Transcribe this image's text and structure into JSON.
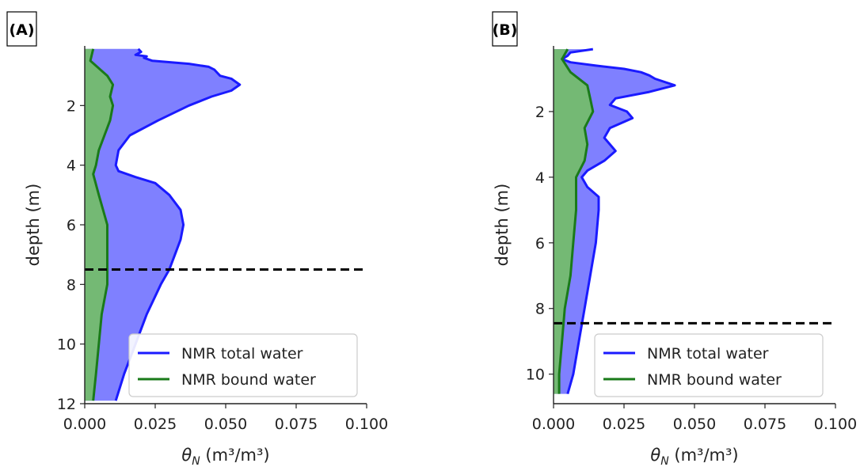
{
  "chart_data": [
    {
      "type": "area",
      "panel_label": "(A)",
      "xlabel_symbol": "θ",
      "xlabel_subscript": "N",
      "xlabel_units": " (m³/m³)",
      "ylabel": "depth (m)",
      "xlim": [
        0.0,
        0.1
      ],
      "ylim": [
        12,
        0
      ],
      "x_ticks": [
        "0.000",
        "0.025",
        "0.050",
        "0.075",
        "0.100"
      ],
      "y_ticks": [
        "2",
        "4",
        "6",
        "8",
        "10",
        "12"
      ],
      "water_table_depth": 7.5,
      "legend": [
        "NMR total water",
        "NMR bound water"
      ],
      "legend_position": "lower-right",
      "colors": {
        "total": "#1a1aff",
        "bound": "#1a7a1a",
        "total_fill": "#7f80ff",
        "bound_fill": "#74b974",
        "water_table": "#000000"
      },
      "series": [
        {
          "name": "NMR total water",
          "depth": [
            0.1,
            0.2,
            0.3,
            0.35,
            0.4,
            0.5,
            0.6,
            0.7,
            0.8,
            0.9,
            1.0,
            1.1,
            1.3,
            1.5,
            1.7,
            2.0,
            2.5,
            3.0,
            3.5,
            4.0,
            4.2,
            4.4,
            4.6,
            5.0,
            5.5,
            6.0,
            6.5,
            7.0,
            7.5,
            8.0,
            9.0,
            10.0,
            11.0,
            11.9
          ],
          "values": [
            0.019,
            0.02,
            0.018,
            0.022,
            0.021,
            0.024,
            0.037,
            0.044,
            0.046,
            0.047,
            0.048,
            0.052,
            0.055,
            0.052,
            0.045,
            0.037,
            0.026,
            0.016,
            0.012,
            0.011,
            0.012,
            0.018,
            0.025,
            0.03,
            0.034,
            0.035,
            0.034,
            0.032,
            0.03,
            0.027,
            0.022,
            0.018,
            0.014,
            0.011
          ]
        },
        {
          "name": "NMR bound water",
          "depth": [
            0.1,
            0.5,
            1.0,
            1.3,
            1.7,
            2.0,
            2.5,
            3.0,
            3.5,
            4.0,
            4.3,
            5.0,
            6.0,
            7.0,
            8.0,
            9.0,
            10.0,
            11.0,
            11.9
          ],
          "values": [
            0.003,
            0.002,
            0.008,
            0.01,
            0.009,
            0.01,
            0.009,
            0.007,
            0.005,
            0.004,
            0.003,
            0.005,
            0.008,
            0.008,
            0.008,
            0.006,
            0.005,
            0.004,
            0.003
          ]
        }
      ]
    },
    {
      "type": "area",
      "panel_label": "(B)",
      "xlabel_symbol": "θ",
      "xlabel_subscript": "N",
      "xlabel_units": " (m³/m³)",
      "ylabel": "depth (m)",
      "xlim": [
        0.0,
        0.1
      ],
      "ylim": [
        10.9,
        0
      ],
      "x_ticks": [
        "0.000",
        "0.025",
        "0.050",
        "0.075",
        "0.100"
      ],
      "y_ticks": [
        "2",
        "4",
        "6",
        "8",
        "10"
      ],
      "water_table_depth": 8.45,
      "legend": [
        "NMR total water",
        "NMR bound water"
      ],
      "legend_position": "lower-right",
      "colors": {
        "total": "#1a1aff",
        "bound": "#1a7a1a",
        "total_fill": "#7f80ff",
        "bound_fill": "#74b974",
        "water_table": "#000000"
      },
      "series": [
        {
          "name": "NMR total water",
          "depth": [
            0.1,
            0.2,
            0.3,
            0.4,
            0.5,
            0.6,
            0.7,
            0.8,
            0.9,
            1.0,
            1.2,
            1.4,
            1.6,
            1.8,
            2.0,
            2.2,
            2.5,
            2.8,
            3.0,
            3.2,
            3.5,
            3.8,
            4.0,
            4.3,
            4.6,
            5.0,
            6.0,
            7.0,
            8.0,
            9.0,
            10.0,
            10.6
          ],
          "values": [
            0.014,
            0.006,
            0.005,
            0.003,
            0.006,
            0.015,
            0.025,
            0.031,
            0.034,
            0.036,
            0.043,
            0.034,
            0.022,
            0.02,
            0.026,
            0.028,
            0.02,
            0.018,
            0.02,
            0.022,
            0.018,
            0.012,
            0.01,
            0.012,
            0.016,
            0.016,
            0.015,
            0.013,
            0.011,
            0.009,
            0.007,
            0.005
          ]
        },
        {
          "name": "NMR bound water",
          "depth": [
            0.1,
            0.4,
            0.8,
            1.2,
            1.6,
            2.0,
            2.5,
            3.0,
            3.5,
            4.0,
            5.0,
            6.0,
            7.0,
            8.0,
            9.0,
            10.0,
            10.6
          ],
          "values": [
            0.005,
            0.003,
            0.006,
            0.012,
            0.013,
            0.014,
            0.011,
            0.012,
            0.011,
            0.008,
            0.008,
            0.007,
            0.006,
            0.004,
            0.003,
            0.002,
            0.002
          ]
        }
      ]
    }
  ]
}
